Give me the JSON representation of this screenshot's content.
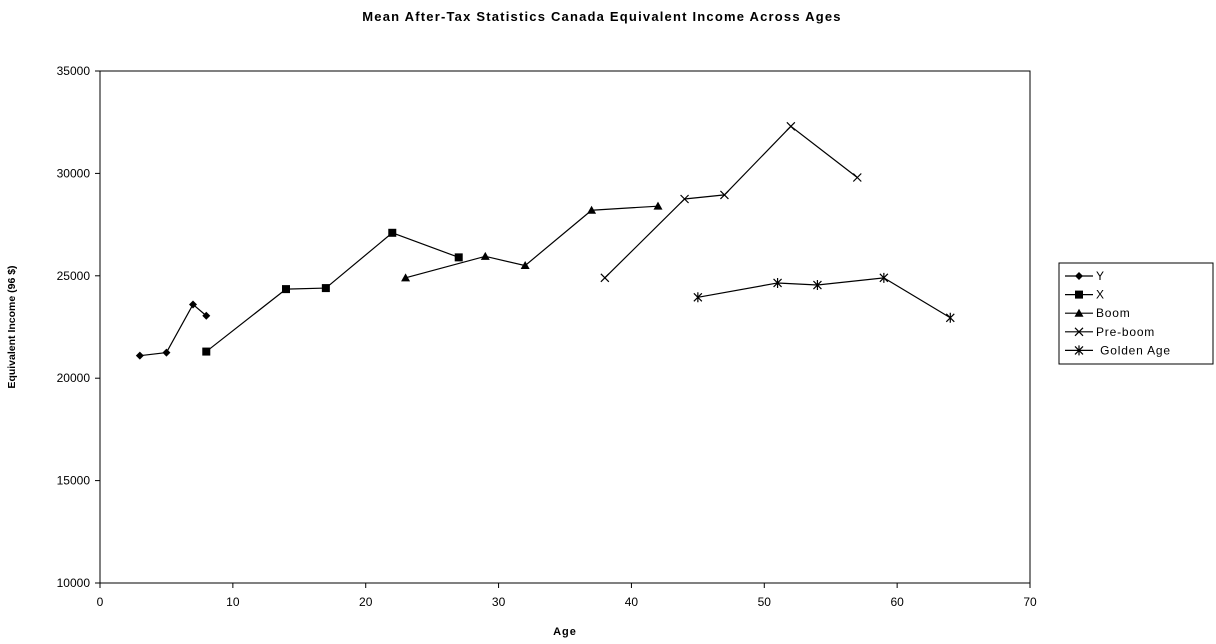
{
  "chart_data": {
    "type": "line",
    "title": "Mean After-Tax Statistics Canada Equivalent Income Across Ages",
    "xlabel": "Age",
    "ylabel": "Equivalent Income (96 $)",
    "xlim": [
      0,
      70
    ],
    "ylim": [
      10000,
      35000
    ],
    "xticks": [
      "0",
      "10",
      "20",
      "30",
      "40",
      "50",
      "60",
      "70"
    ],
    "yticks": [
      "10000",
      "15000",
      "20000",
      "25000",
      "30000",
      "35000"
    ],
    "grid": false,
    "legend_position": "right",
    "series": [
      {
        "name": "Y",
        "marker": "diamond",
        "x": [
          3,
          5,
          7,
          8
        ],
        "y": [
          21100,
          21250,
          23600,
          23050
        ]
      },
      {
        "name": "X",
        "marker": "square",
        "x": [
          8,
          14,
          17,
          22,
          27
        ],
        "y": [
          21300,
          24350,
          24400,
          27100,
          25900
        ]
      },
      {
        "name": "Boom",
        "marker": "triangle",
        "x": [
          23,
          29,
          32,
          37,
          42
        ],
        "y": [
          24900,
          25950,
          25500,
          28200,
          28400
        ]
      },
      {
        "name": "Pre-boom",
        "marker": "x",
        "x": [
          38,
          44,
          47,
          52,
          57
        ],
        "y": [
          24900,
          28750,
          28950,
          32300,
          29800
        ]
      },
      {
        "name": " Golden Age",
        "marker": "asterisk",
        "x": [
          45,
          51,
          54,
          59,
          64
        ],
        "y": [
          23950,
          24650,
          24550,
          24900,
          22950
        ]
      }
    ]
  }
}
